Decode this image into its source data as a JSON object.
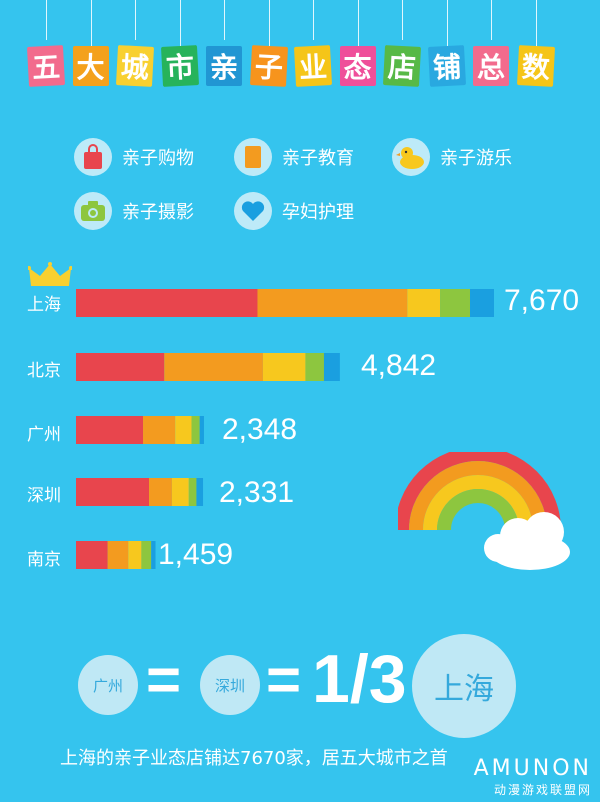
{
  "title_chars": [
    "五",
    "大",
    "城",
    "市",
    "亲",
    "子",
    "业",
    "态",
    "店",
    "铺",
    "总",
    "数"
  ],
  "title_colors": [
    "#f26b8d",
    "#f4a11c",
    "#f8d030",
    "#27b35b",
    "#2196d3",
    "#f7941d",
    "#f5c518",
    "#ef4f9a",
    "#57b946",
    "#29a8e0",
    "#f26b8d",
    "#f5c518"
  ],
  "legend": [
    {
      "label": "亲子购物",
      "icon": "shopping-bag-icon",
      "color": "#e8454d"
    },
    {
      "label": "亲子教育",
      "icon": "book-icon",
      "color": "#f39b1f"
    },
    {
      "label": "亲子游乐",
      "icon": "rubber-duck-icon",
      "color": "#f7c81e"
    },
    {
      "label": "亲子摄影",
      "icon": "camera-icon",
      "color": "#8dc63f"
    },
    {
      "label": "孕妇护理",
      "icon": "heart-icon",
      "color": "#1a9fe0"
    }
  ],
  "chart_data": {
    "type": "bar",
    "orientation": "horizontal",
    "stacked": true,
    "categories": [
      "上海",
      "北京",
      "广州",
      "深圳",
      "南京"
    ],
    "totals_labels": [
      "7,670",
      "4,842",
      "2,348",
      "2,331",
      "1,459"
    ],
    "totals": [
      7670,
      4842,
      2348,
      2331,
      1459
    ],
    "series": [
      {
        "name": "亲子购物",
        "color": "#e8454d",
        "values": [
          3330,
          1620,
          1230,
          1340,
          580
        ]
      },
      {
        "name": "亲子教育",
        "color": "#f39b1f",
        "values": [
          2750,
          1810,
          590,
          420,
          380
        ]
      },
      {
        "name": "亲子游乐",
        "color": "#f7c81e",
        "values": [
          600,
          780,
          300,
          310,
          240
        ]
      },
      {
        "name": "亲子摄影",
        "color": "#8dc63f",
        "values": [
          550,
          340,
          150,
          140,
          180
        ]
      },
      {
        "name": "孕妇护理",
        "color": "#1a9fe0",
        "values": [
          440,
          292,
          78,
          121,
          79
        ]
      }
    ],
    "top_marker": "crown-icon"
  },
  "comparison": {
    "left_a": "广州",
    "left_b": "深圳",
    "ratio": "1/3",
    "right": "上海"
  },
  "footer_text": "上海的亲子业态店铺达7670家，居五大城市之首",
  "watermark": {
    "top": "AMUNON",
    "bottom": "动漫游戏联盟网"
  }
}
